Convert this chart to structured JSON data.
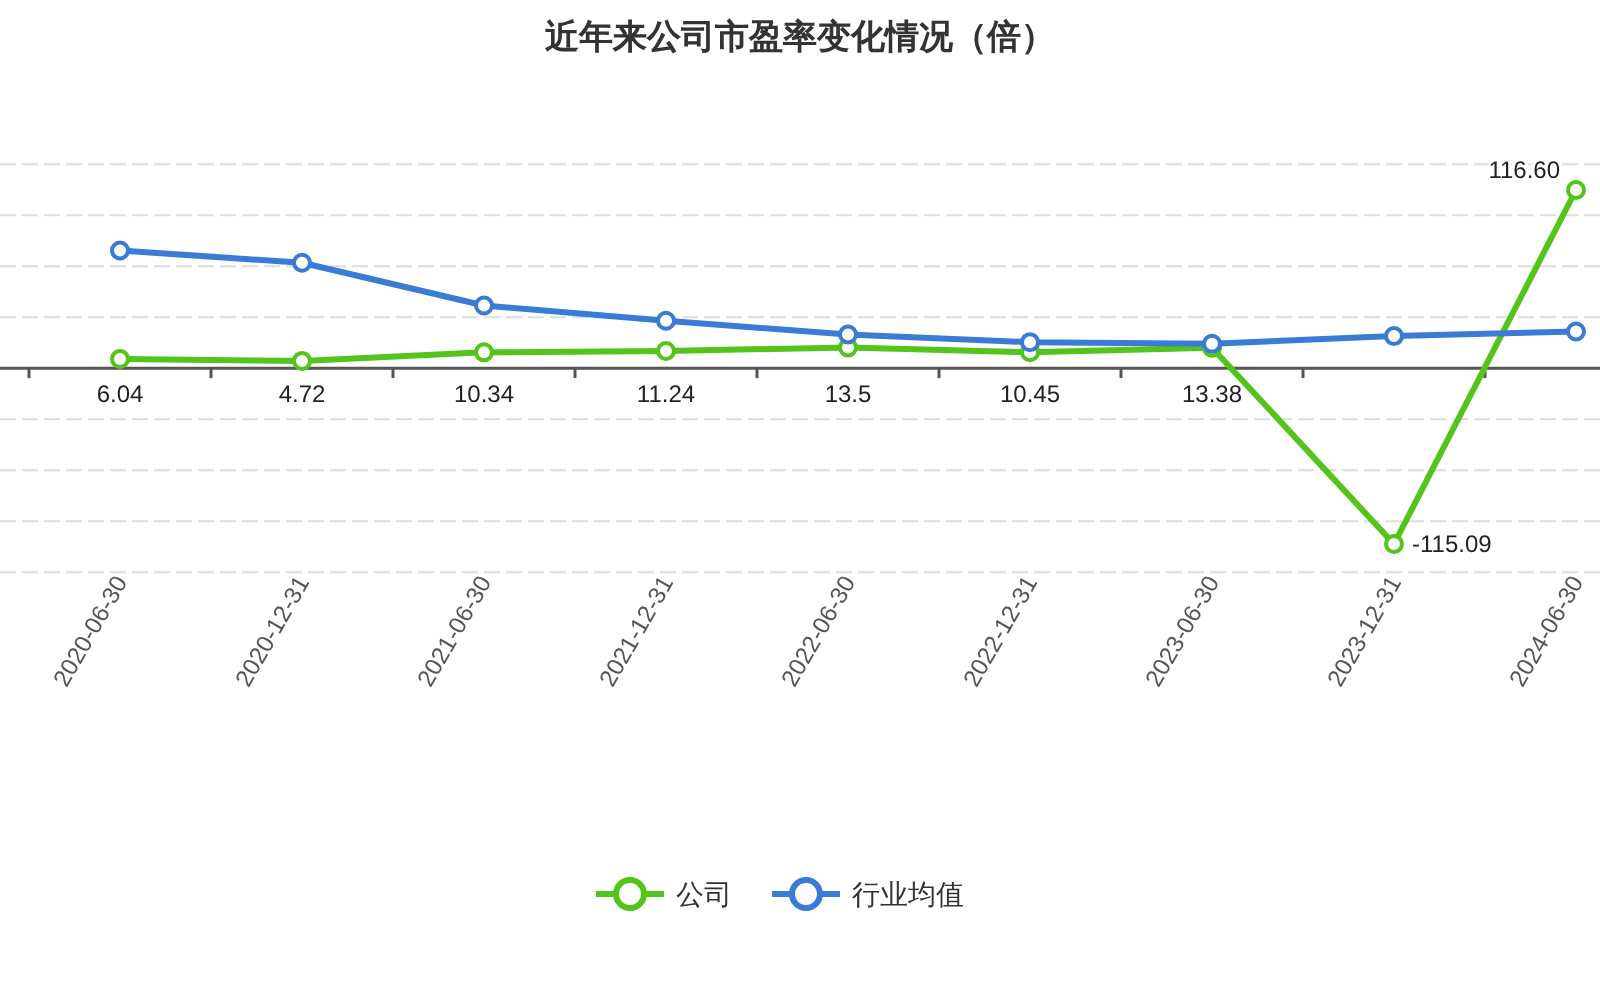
{
  "chart_data": {
    "type": "line",
    "title": "近年来公司市盈率变化情况（倍）",
    "grid": "y",
    "legend": "bottom",
    "marker": "circle",
    "line_style": "solid",
    "categories": [
      "2020-06-30",
      "2020-12-31",
      "2021-06-30",
      "2021-12-31",
      "2022-06-30",
      "2022-12-31",
      "2023-06-30",
      "2023-12-31",
      "2024-06-30"
    ],
    "series": [
      {
        "name": "公司",
        "color": "#52c41a",
        "values": [
          6.04,
          4.72,
          10.34,
          11.24,
          13.5,
          10.45,
          13.38,
          -115.09,
          116.6
        ],
        "value_labels": [
          "6.04",
          "4.72",
          "10.34",
          "11.24",
          "13.5",
          "10.45",
          "13.38",
          "-115.09",
          "116.60"
        ]
      },
      {
        "name": "行业均值",
        "color": "#3a7bd5",
        "values": [
          77,
          69,
          41,
          31,
          22,
          17,
          16,
          21,
          24
        ]
      }
    ]
  }
}
